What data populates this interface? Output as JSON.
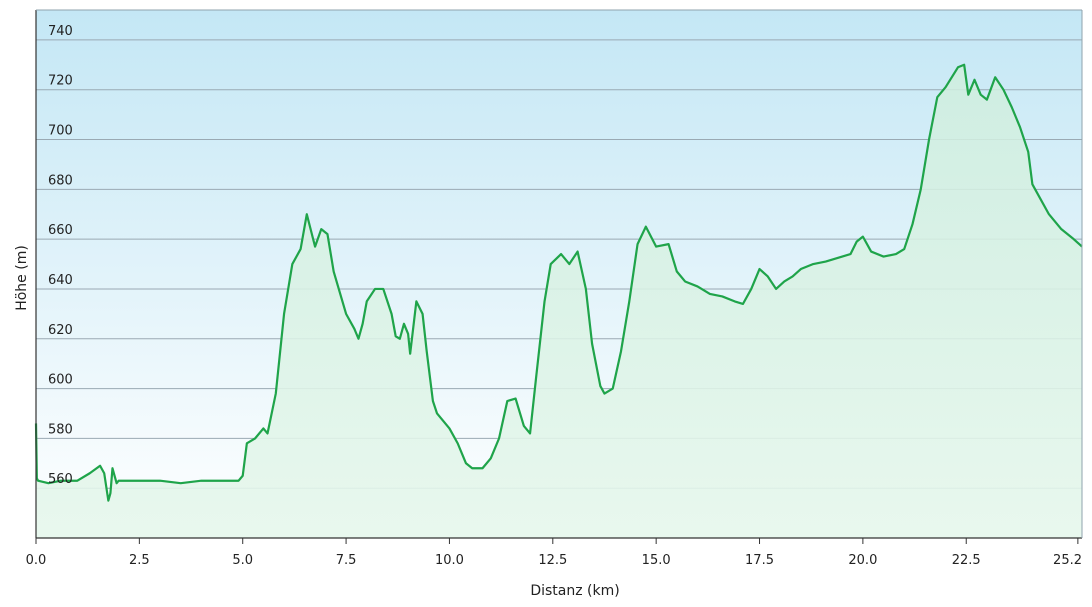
{
  "chart_data": {
    "type": "area",
    "title": "",
    "xlabel": "Distanz  (km)",
    "ylabel": "Höhe (m)",
    "xlim": [
      0,
      25.3
    ],
    "ylim": [
      540,
      752
    ],
    "xticks": [
      0.0,
      2.5,
      5.0,
      7.5,
      10.0,
      12.5,
      15.0,
      17.5,
      20.0,
      22.5,
      25.2
    ],
    "xtick_labels": [
      "0.0",
      "2.5",
      "5.0",
      "7.5",
      "10.0",
      "12.5",
      "15.0",
      "17.5",
      "20.0",
      "22.5",
      "25.2"
    ],
    "yticks": [
      560,
      580,
      600,
      620,
      640,
      660,
      680,
      700,
      720,
      740
    ],
    "ytick_labels": [
      "560",
      "580",
      "600",
      "620",
      "640",
      "660",
      "680",
      "700",
      "720",
      "740"
    ],
    "grid": true,
    "series": [
      {
        "x": [
          0.0,
          0.02,
          0.05,
          0.3,
          0.6,
          1.0,
          1.3,
          1.55,
          1.65,
          1.75,
          1.8,
          1.85,
          1.95,
          2.0,
          2.2,
          2.5,
          3.0,
          3.5,
          4.0,
          4.5,
          4.9,
          5.0,
          5.1,
          5.3,
          5.5,
          5.6,
          5.8,
          6.0,
          6.2,
          6.4,
          6.55,
          6.75,
          6.9,
          7.05,
          7.2,
          7.5,
          7.7,
          7.8,
          7.9,
          8.0,
          8.2,
          8.4,
          8.6,
          8.7,
          8.8,
          8.9,
          9.0,
          9.05,
          9.2,
          9.35,
          9.45,
          9.6,
          9.7,
          10.0,
          10.2,
          10.4,
          10.55,
          10.8,
          11.0,
          11.2,
          11.4,
          11.6,
          11.8,
          11.95,
          12.1,
          12.3,
          12.45,
          12.7,
          12.9,
          13.1,
          13.3,
          13.45,
          13.65,
          13.75,
          13.95,
          14.15,
          14.35,
          14.55,
          14.75,
          15.0,
          15.3,
          15.5,
          15.7,
          16.0,
          16.3,
          16.6,
          16.9,
          17.1,
          17.3,
          17.5,
          17.7,
          17.9,
          18.1,
          18.3,
          18.5,
          18.8,
          19.1,
          19.5,
          19.7,
          19.85,
          20.0,
          20.2,
          20.5,
          20.8,
          21.0,
          21.2,
          21.4,
          21.6,
          21.8,
          22.0,
          22.3,
          22.45,
          22.55,
          22.7,
          22.85,
          23.0,
          23.2,
          23.4,
          23.6,
          23.8,
          24.0,
          24.1,
          24.3,
          24.5,
          24.8,
          25.1,
          25.3
        ],
        "y": [
          586,
          564,
          563,
          562,
          563,
          563,
          566,
          569,
          566,
          555,
          558,
          568,
          562,
          563,
          563,
          563,
          563,
          562,
          563,
          563,
          563,
          565,
          578,
          580,
          584,
          582,
          598,
          630,
          650,
          656,
          670,
          657,
          664,
          662,
          647,
          630,
          624,
          620,
          626,
          635,
          640,
          640,
          630,
          621,
          620,
          626,
          622,
          614,
          635,
          630,
          615,
          595,
          590,
          584,
          578,
          570,
          568,
          568,
          572,
          580,
          595,
          596,
          585,
          582,
          605,
          635,
          650,
          654,
          650,
          655,
          640,
          618,
          601,
          598,
          600,
          615,
          635,
          658,
          665,
          657,
          658,
          647,
          643,
          641,
          638,
          637,
          635,
          634,
          640,
          648,
          645,
          640,
          643,
          645,
          648,
          650,
          651,
          653,
          654,
          659,
          661,
          655,
          653,
          654,
          656,
          666,
          680,
          700,
          717,
          721,
          729,
          730,
          718,
          724,
          718,
          716,
          725,
          720,
          713,
          705,
          695,
          682,
          676,
          670,
          664,
          660,
          657
        ]
      }
    ]
  }
}
